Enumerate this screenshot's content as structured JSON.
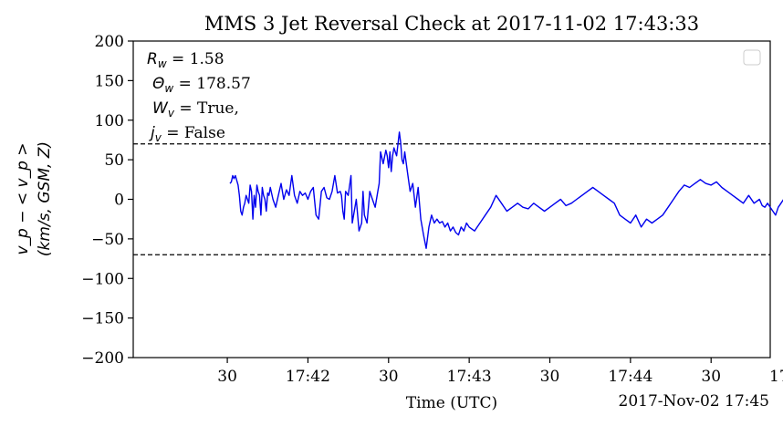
{
  "chart_data": {
    "type": "line",
    "title": "MMS 3 Jet Reversal Check at 2017-11-02 17:43:33",
    "xlabel": "Time (UTC)",
    "x_offset_label": "2017-Nov-02 17:45",
    "ylabel_line1": "v_p − < v_p >",
    "ylabel_line2": "(km/s, GSM, Z)",
    "ylim": [
      -200,
      200
    ],
    "xlim_seconds_after_1741": [
      -5,
      232
    ],
    "yticks": [
      200,
      150,
      100,
      50,
      0,
      -50,
      -100,
      -150,
      -200
    ],
    "ytick_labels": [
      "200",
      "150",
      "100",
      "50",
      "0",
      "−50",
      "−100",
      "−150",
      "∀"
    ],
    "xticks": [
      {
        "t": 30,
        "label": "30"
      },
      {
        "t": 60,
        "label": "17:42"
      },
      {
        "t": 90,
        "label": "30"
      },
      {
        "t": 120,
        "label": "17:43"
      },
      {
        "t": 150,
        "label": "30"
      },
      {
        "t": 180,
        "label": "17:44"
      },
      {
        "t": 210,
        "label": "30"
      },
      {
        "t": 240,
        "label": "17:45"
      },
      {
        "t": 270,
        "label": "30"
      }
    ],
    "threshold_lines": [
      70,
      -70
    ],
    "annotations": [
      {
        "sym": "R",
        "sub": "w",
        "value": " = 1.58"
      },
      {
        "sym": "Θ",
        "sub": "w",
        "value": " = 178.57"
      },
      {
        "sym": "W",
        "sub": "v",
        "value": " = True,"
      },
      {
        "sym": "j",
        "sub": "v",
        "value": " = False"
      }
    ],
    "legend_placement": "upper right (empty)",
    "series_color": "#0000ee",
    "series": [
      {
        "x_seconds_after_1741": [
          31.0,
          31.5,
          32.0,
          32.5,
          33.0,
          33.5,
          34.0,
          34.5,
          35.0,
          35.5,
          36.0,
          36.5,
          37.0,
          37.5,
          38.0,
          38.5,
          39.0,
          39.5,
          40.0,
          40.5,
          41.0,
          41.5,
          42.0,
          42.5,
          43.0,
          43.5,
          44.0,
          44.5,
          45.0,
          45.5,
          46.0,
          47.0,
          48.0,
          49.0,
          50.0,
          51.0,
          52.0,
          53.0,
          54.0,
          55.0,
          56.0,
          57.0,
          58.0,
          59.0,
          60.0,
          61.0,
          62.0,
          63.0,
          64.0,
          65.0,
          66.0,
          67.0,
          68.0,
          69.0,
          70.0,
          71.0,
          72.0,
          72.5,
          73.0,
          73.5,
          74.0,
          75.0,
          76.0,
          76.5,
          77.0,
          78.0,
          79.0,
          80.0,
          80.5,
          81.0,
          82.0,
          83.0,
          84.0,
          85.0,
          86.0,
          86.5,
          87.0,
          88.0,
          89.0,
          89.5,
          90.0,
          90.5,
          91.0,
          91.5,
          92.0,
          93.0,
          94.0,
          94.5,
          95.0,
          95.5,
          96.0,
          97.0,
          98.0,
          99.0,
          100.0,
          101.0,
          102.0,
          103.0,
          104.0,
          105.0,
          106.0,
          107.0,
          108.0,
          109.0,
          110.0,
          111.0,
          112.0,
          113.0,
          114.0,
          115.0,
          116.0,
          117.0,
          118.0,
          119.0,
          120.0,
          122.0,
          124.0,
          126.0,
          128.0,
          130.0,
          132.0,
          134.0,
          136.0,
          138.0,
          140.0,
          142.0,
          144.0,
          146.0,
          148.0,
          150.0,
          152.0,
          154.0,
          156.0,
          158.0,
          160.0,
          162.0,
          164.0,
          166.0,
          168.0,
          170.0,
          172.0,
          174.0,
          176.0,
          178.0,
          180.0,
          182.0,
          184.0,
          186.0,
          188.0,
          190.0,
          192.0,
          194.0,
          196.0,
          198.0,
          200.0,
          202.0,
          204.0,
          206.0,
          208.0,
          210.0,
          212.0,
          214.0,
          216.0,
          218.0,
          220.0,
          222.0,
          224.0,
          226.0,
          228.0,
          229.0,
          230.0,
          231.0,
          232.0,
          233.0,
          234.0,
          235.0,
          236.0,
          237.0,
          238.0,
          239.0,
          240.0,
          241.0,
          242.0,
          243.0,
          244.0,
          245.0,
          246.0,
          247.0,
          248.0,
          249.0,
          250.0,
          251.0,
          252.0,
          253.0,
          254.0,
          255.0,
          256.0,
          257.0,
          258.0,
          259.0,
          260.0,
          261.0,
          262.0,
          263.0,
          264.0,
          265.0,
          266.0,
          267.0,
          268.0,
          268.5,
          269.0,
          269.5,
          270.0,
          270.5,
          271.0,
          271.5,
          272.0,
          272.5,
          273.0,
          273.5,
          274.0,
          275.0,
          276.0
        ],
        "y": [
          20,
          22,
          30,
          26,
          30,
          24,
          18,
          5,
          -15,
          -20,
          -10,
          -5,
          5,
          0,
          -5,
          18,
          10,
          -25,
          5,
          -10,
          18,
          10,
          5,
          -20,
          15,
          5,
          0,
          -15,
          8,
          5,
          15,
          0,
          -10,
          5,
          20,
          0,
          12,
          5,
          30,
          5,
          -5,
          10,
          5,
          8,
          0,
          10,
          15,
          -20,
          -25,
          10,
          15,
          2,
          0,
          10,
          30,
          8,
          10,
          5,
          -15,
          -25,
          10,
          5,
          30,
          -30,
          -20,
          0,
          -40,
          -30,
          10,
          -20,
          -30,
          10,
          0,
          -10,
          10,
          20,
          60,
          45,
          62,
          55,
          40,
          60,
          35,
          55,
          65,
          55,
          85,
          72,
          50,
          45,
          60,
          35,
          10,
          20,
          -10,
          15,
          -25,
          -45,
          -62,
          -35,
          -20,
          -30,
          -25,
          -30,
          -28,
          -35,
          -30,
          -40,
          -35,
          -42,
          -45,
          -35,
          -40,
          -30,
          -35,
          -40,
          -30,
          -20,
          -10,
          5,
          -5,
          -15,
          -10,
          -5,
          -10,
          -12,
          -5,
          -10,
          -15,
          -10,
          -5,
          0,
          -8,
          -5,
          0,
          5,
          10,
          15,
          10,
          5,
          0,
          -5,
          -20,
          -25,
          -30,
          -20,
          -35,
          -25,
          -30,
          -25,
          -20,
          -10,
          0,
          10,
          18,
          15,
          20,
          25,
          20,
          18,
          22,
          15,
          10,
          5,
          0,
          -5,
          5,
          -5,
          0,
          -8,
          -10,
          -5,
          -10,
          -15,
          -20,
          -10,
          -5,
          0,
          5,
          10,
          20,
          30,
          40,
          48,
          30,
          20,
          10,
          0,
          5,
          10,
          15,
          5,
          0,
          10,
          -5,
          -10,
          -20,
          -15,
          -30,
          -40,
          -45,
          -50,
          -40,
          -55,
          -65,
          -50,
          -45,
          -35,
          -25,
          -15,
          0,
          5,
          15,
          30,
          50,
          68,
          75,
          65,
          55,
          75,
          55,
          48,
          52,
          60,
          60,
          58
        ]
      }
    ]
  }
}
